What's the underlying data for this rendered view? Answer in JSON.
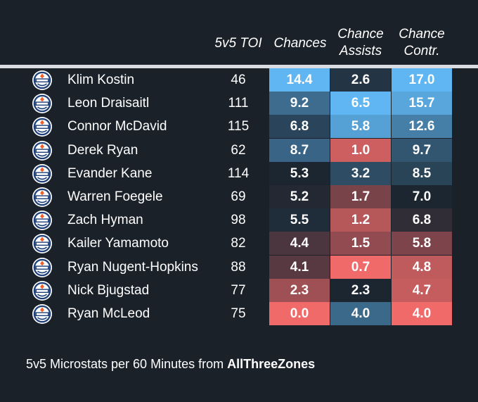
{
  "chart_data": {
    "type": "table",
    "columns": [
      "5v5 TOI",
      "Chances",
      "Chance Assists",
      "Chance Contr."
    ],
    "header_lines": [
      [
        "5v5 TOI"
      ],
      [
        "Chances"
      ],
      [
        "Chance",
        "Assists"
      ],
      [
        "Chance",
        "Contr."
      ]
    ],
    "rows": [
      {
        "player": "Klim Kostin",
        "toi": "46",
        "chances": "14.4",
        "chance_assists": "2.6",
        "chance_contr": "17.0"
      },
      {
        "player": "Leon Draisaitl",
        "toi": "111",
        "chances": "9.2",
        "chance_assists": "6.5",
        "chance_contr": "15.7"
      },
      {
        "player": "Connor McDavid",
        "toi": "115",
        "chances": "6.8",
        "chance_assists": "5.8",
        "chance_contr": "12.6"
      },
      {
        "player": "Derek Ryan",
        "toi": "62",
        "chances": "8.7",
        "chance_assists": "1.0",
        "chance_contr": "9.7"
      },
      {
        "player": "Evander Kane",
        "toi": "114",
        "chances": "5.3",
        "chance_assists": "3.2",
        "chance_contr": "8.5"
      },
      {
        "player": "Warren Foegele",
        "toi": "69",
        "chances": "5.2",
        "chance_assists": "1.7",
        "chance_contr": "7.0"
      },
      {
        "player": "Zach Hyman",
        "toi": "98",
        "chances": "5.5",
        "chance_assists": "1.2",
        "chance_contr": "6.8"
      },
      {
        "player": "Kailer Yamamoto",
        "toi": "82",
        "chances": "4.4",
        "chance_assists": "1.5",
        "chance_contr": "5.8"
      },
      {
        "player": "Ryan Nugent-Hopkins",
        "toi": "88",
        "chances": "4.1",
        "chance_assists": "0.7",
        "chance_contr": "4.8"
      },
      {
        "player": "Nick Bjugstad",
        "toi": "77",
        "chances": "2.3",
        "chance_assists": "2.3",
        "chance_contr": "4.7"
      },
      {
        "player": "Ryan McLeod",
        "toi": "75",
        "chances": "0.0",
        "chance_assists": "4.0",
        "chance_contr": "4.0"
      }
    ],
    "footer_prefix": "5v5 Microstats per 60 Minutes from ",
    "footer_source": "AllThreeZones",
    "colors": {
      "background": "#1b2129",
      "high": "#5fb6f2",
      "mid": "#1c2631",
      "low": "#f06a6a",
      "rule": "#d9dde2",
      "logo_blue": "#1d3f7a",
      "logo_orange": "#f0602a"
    }
  }
}
